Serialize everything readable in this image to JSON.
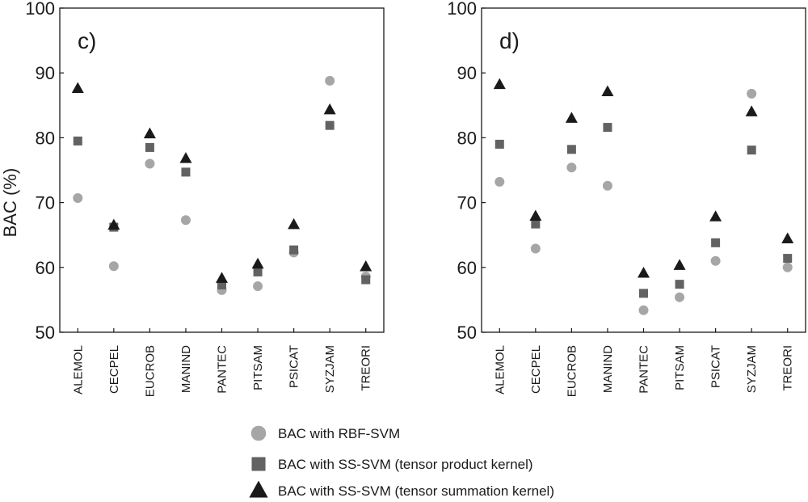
{
  "legend": [
    {
      "name": "BAC with RBF-SVM",
      "marker": "circle",
      "color": "#a6a6a6"
    },
    {
      "name": "BAC with SS-SVM (tensor product kernel)",
      "marker": "square",
      "color": "#626262"
    },
    {
      "name": "BAC with SS-SVM (tensor summation kernel)",
      "marker": "triangle",
      "color": "#1a1a1a"
    }
  ],
  "chart_data": [
    {
      "type": "scatter",
      "panel_label": "c)",
      "ylabel": "BAC (%)",
      "ylim": [
        50,
        100
      ],
      "yticks": [
        50,
        60,
        70,
        80,
        90,
        100
      ],
      "categories": [
        "ALEMOL",
        "CECPEL",
        "EUCROB",
        "MANIND",
        "PANTEC",
        "PITSAM",
        "PSICAT",
        "SYZJAM",
        "TREORI"
      ],
      "series": [
        {
          "name": "BAC with RBF-SVM",
          "values": [
            70.7,
            60.2,
            76.0,
            67.3,
            56.5,
            57.1,
            62.3,
            88.8,
            58.6
          ]
        },
        {
          "name": "BAC with SS-SVM (tensor product kernel)",
          "values": [
            79.5,
            66.2,
            78.5,
            74.7,
            57.3,
            59.3,
            62.7,
            81.9,
            58.1
          ]
        },
        {
          "name": "BAC with SS-SVM (tensor summation kernel)",
          "values": [
            87.6,
            66.5,
            80.6,
            76.8,
            58.3,
            60.5,
            66.6,
            84.3,
            60.1
          ]
        }
      ]
    },
    {
      "type": "scatter",
      "panel_label": "d)",
      "ylabel": "",
      "ylim": [
        50,
        100
      ],
      "yticks": [
        50,
        60,
        70,
        80,
        90,
        100
      ],
      "categories": [
        "ALEMOL",
        "CECPEL",
        "EUCROB",
        "MANIND",
        "PANTEC",
        "PITSAM",
        "PSICAT",
        "SYZJAM",
        "TREORI"
      ],
      "series": [
        {
          "name": "BAC with RBF-SVM",
          "values": [
            73.2,
            62.9,
            75.4,
            72.6,
            53.4,
            55.4,
            61.0,
            86.8,
            60.0
          ]
        },
        {
          "name": "BAC with SS-SVM (tensor product kernel)",
          "values": [
            79.0,
            66.7,
            78.2,
            81.6,
            56.0,
            57.4,
            63.8,
            78.1,
            61.4
          ]
        },
        {
          "name": "BAC with SS-SVM (tensor summation kernel)",
          "values": [
            88.2,
            67.9,
            83.0,
            87.1,
            59.1,
            60.3,
            67.8,
            84.0,
            64.4
          ]
        }
      ]
    }
  ]
}
